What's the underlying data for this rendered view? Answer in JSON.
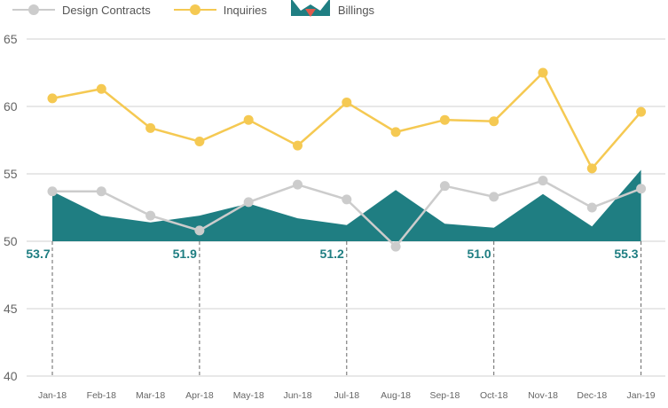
{
  "chart_data": {
    "type": "line",
    "title": "",
    "xlabel": "",
    "ylabel": "",
    "ylim": [
      40,
      65
    ],
    "yticks": [
      40,
      45,
      50,
      55,
      60,
      65
    ],
    "categories": [
      "Jan-18",
      "Feb-18",
      "Mar-18",
      "Apr-18",
      "May-18",
      "Jun-18",
      "Jul-18",
      "Aug-18",
      "Sep-18",
      "Oct-18",
      "Nov-18",
      "Dec-18",
      "Jan-19"
    ],
    "series": [
      {
        "name": "Design Contracts",
        "kind": "line",
        "color": "#cccccc",
        "values": [
          53.7,
          53.7,
          51.9,
          50.8,
          52.9,
          54.2,
          53.1,
          49.6,
          54.1,
          53.3,
          54.5,
          52.5,
          53.9
        ]
      },
      {
        "name": "Inquiries",
        "kind": "line",
        "color": "#f5c952",
        "values": [
          60.6,
          61.3,
          58.4,
          57.4,
          59.0,
          57.1,
          60.3,
          58.1,
          59.0,
          58.9,
          62.5,
          55.4,
          59.6
        ]
      },
      {
        "name": "Billings",
        "kind": "area",
        "color": "#1f7e82",
        "values": [
          53.7,
          51.9,
          51.4,
          51.9,
          52.8,
          51.7,
          51.2,
          53.8,
          51.3,
          51.0,
          53.5,
          51.1,
          55.3
        ]
      }
    ],
    "annotations": [
      {
        "index": 0,
        "label": "53.7"
      },
      {
        "index": 3,
        "label": "51.9"
      },
      {
        "index": 6,
        "label": "51.2"
      },
      {
        "index": 9,
        "label": "51.0"
      },
      {
        "index": 12,
        "label": "55.3"
      }
    ],
    "grid": true,
    "legend_position": "top-left"
  }
}
